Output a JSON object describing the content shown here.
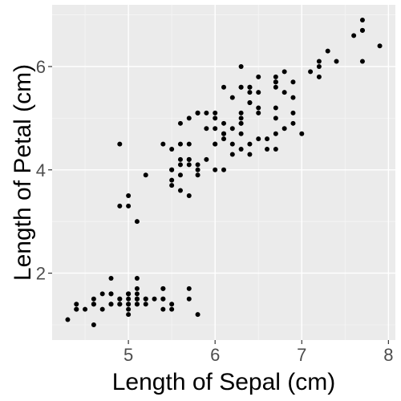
{
  "chart_data": {
    "type": "scatter",
    "xlabel": "Length of Sepal (cm)",
    "ylabel": "Length of Petal (cm)",
    "xlim": [
      4.12,
      8.08
    ],
    "ylim": [
      0.705,
      7.195
    ],
    "x_ticks": [
      5,
      6,
      7,
      8
    ],
    "y_ticks": [
      2,
      4,
      6
    ],
    "grid": true,
    "colors": {
      "panel": "#EBEBEB",
      "grid_major": "#FFFFFF",
      "grid_minor": "#F5F5F5",
      "point": "#000000",
      "tick": "#333333"
    },
    "points": [
      [
        5.1,
        1.4
      ],
      [
        4.9,
        1.4
      ],
      [
        4.7,
        1.3
      ],
      [
        4.6,
        1.5
      ],
      [
        5.0,
        1.4
      ],
      [
        5.4,
        1.7
      ],
      [
        4.6,
        1.4
      ],
      [
        5.0,
        1.5
      ],
      [
        4.4,
        1.4
      ],
      [
        4.9,
        1.5
      ],
      [
        5.4,
        1.5
      ],
      [
        4.8,
        1.6
      ],
      [
        4.8,
        1.4
      ],
      [
        4.3,
        1.1
      ],
      [
        5.8,
        1.2
      ],
      [
        5.7,
        1.5
      ],
      [
        5.4,
        1.3
      ],
      [
        5.1,
        1.4
      ],
      [
        5.7,
        1.7
      ],
      [
        5.1,
        1.5
      ],
      [
        5.4,
        1.7
      ],
      [
        5.1,
        1.5
      ],
      [
        4.6,
        1.0
      ],
      [
        5.1,
        1.7
      ],
      [
        4.8,
        1.9
      ],
      [
        5.0,
        1.6
      ],
      [
        5.0,
        1.6
      ],
      [
        5.2,
        1.5
      ],
      [
        5.2,
        1.4
      ],
      [
        4.7,
        1.6
      ],
      [
        4.8,
        1.6
      ],
      [
        5.4,
        1.5
      ],
      [
        5.2,
        1.5
      ],
      [
        5.5,
        1.4
      ],
      [
        4.9,
        1.5
      ],
      [
        5.0,
        1.2
      ],
      [
        5.5,
        1.3
      ],
      [
        4.9,
        1.4
      ],
      [
        4.4,
        1.3
      ],
      [
        5.1,
        1.5
      ],
      [
        5.0,
        1.3
      ],
      [
        4.5,
        1.3
      ],
      [
        4.4,
        1.3
      ],
      [
        5.0,
        1.6
      ],
      [
        5.1,
        1.9
      ],
      [
        4.8,
        1.4
      ],
      [
        5.1,
        1.6
      ],
      [
        4.6,
        1.4
      ],
      [
        5.3,
        1.5
      ],
      [
        5.0,
        1.4
      ],
      [
        7.0,
        4.7
      ],
      [
        6.4,
        4.5
      ],
      [
        6.9,
        4.9
      ],
      [
        5.5,
        4.0
      ],
      [
        6.5,
        4.6
      ],
      [
        5.7,
        4.5
      ],
      [
        6.3,
        4.7
      ],
      [
        4.9,
        3.3
      ],
      [
        6.6,
        4.6
      ],
      [
        5.2,
        3.9
      ],
      [
        5.0,
        3.5
      ],
      [
        5.9,
        4.2
      ],
      [
        6.0,
        4.0
      ],
      [
        6.1,
        4.7
      ],
      [
        5.6,
        3.6
      ],
      [
        6.7,
        4.4
      ],
      [
        5.6,
        4.5
      ],
      [
        5.8,
        4.1
      ],
      [
        6.2,
        4.5
      ],
      [
        5.6,
        3.9
      ],
      [
        5.9,
        4.8
      ],
      [
        6.1,
        4.0
      ],
      [
        6.3,
        4.9
      ],
      [
        6.1,
        4.7
      ],
      [
        6.4,
        4.3
      ],
      [
        6.6,
        4.4
      ],
      [
        6.8,
        4.8
      ],
      [
        6.7,
        5.0
      ],
      [
        6.0,
        4.5
      ],
      [
        5.7,
        3.5
      ],
      [
        5.5,
        3.8
      ],
      [
        5.5,
        3.7
      ],
      [
        5.8,
        3.9
      ],
      [
        6.0,
        5.1
      ],
      [
        5.4,
        4.5
      ],
      [
        6.0,
        4.5
      ],
      [
        6.7,
        4.7
      ],
      [
        6.3,
        4.4
      ],
      [
        5.6,
        4.1
      ],
      [
        5.5,
        4.0
      ],
      [
        5.5,
        4.4
      ],
      [
        6.1,
        4.6
      ],
      [
        5.8,
        4.0
      ],
      [
        5.0,
        3.3
      ],
      [
        5.6,
        4.2
      ],
      [
        5.7,
        4.2
      ],
      [
        5.7,
        4.2
      ],
      [
        6.2,
        4.3
      ],
      [
        5.1,
        3.0
      ],
      [
        5.7,
        4.1
      ],
      [
        6.3,
        6.0
      ],
      [
        5.8,
        5.1
      ],
      [
        7.1,
        5.9
      ],
      [
        6.3,
        5.6
      ],
      [
        6.5,
        5.8
      ],
      [
        7.6,
        6.6
      ],
      [
        4.9,
        4.5
      ],
      [
        7.3,
        6.3
      ],
      [
        6.7,
        5.8
      ],
      [
        7.2,
        6.1
      ],
      [
        6.5,
        5.1
      ],
      [
        6.4,
        5.3
      ],
      [
        6.8,
        5.5
      ],
      [
        5.7,
        5.0
      ],
      [
        5.8,
        5.1
      ],
      [
        6.4,
        5.3
      ],
      [
        6.5,
        5.5
      ],
      [
        7.7,
        6.7
      ],
      [
        7.7,
        6.9
      ],
      [
        6.0,
        5.0
      ],
      [
        6.9,
        5.7
      ],
      [
        5.6,
        4.9
      ],
      [
        7.7,
        6.7
      ],
      [
        6.3,
        4.9
      ],
      [
        6.7,
        5.7
      ],
      [
        7.2,
        6.0
      ],
      [
        6.2,
        4.8
      ],
      [
        6.1,
        4.9
      ],
      [
        6.4,
        5.6
      ],
      [
        7.2,
        5.8
      ],
      [
        7.4,
        6.1
      ],
      [
        7.9,
        6.4
      ],
      [
        6.4,
        5.6
      ],
      [
        6.3,
        5.1
      ],
      [
        6.1,
        5.6
      ],
      [
        7.7,
        6.1
      ],
      [
        6.3,
        5.6
      ],
      [
        6.4,
        5.5
      ],
      [
        6.0,
        4.8
      ],
      [
        6.9,
        5.4
      ],
      [
        6.7,
        5.6
      ],
      [
        6.9,
        5.1
      ],
      [
        5.8,
        5.1
      ],
      [
        6.8,
        5.9
      ],
      [
        6.7,
        5.7
      ],
      [
        6.7,
        5.2
      ],
      [
        6.3,
        5.0
      ],
      [
        6.5,
        5.2
      ],
      [
        6.2,
        5.4
      ],
      [
        5.9,
        5.1
      ]
    ]
  }
}
